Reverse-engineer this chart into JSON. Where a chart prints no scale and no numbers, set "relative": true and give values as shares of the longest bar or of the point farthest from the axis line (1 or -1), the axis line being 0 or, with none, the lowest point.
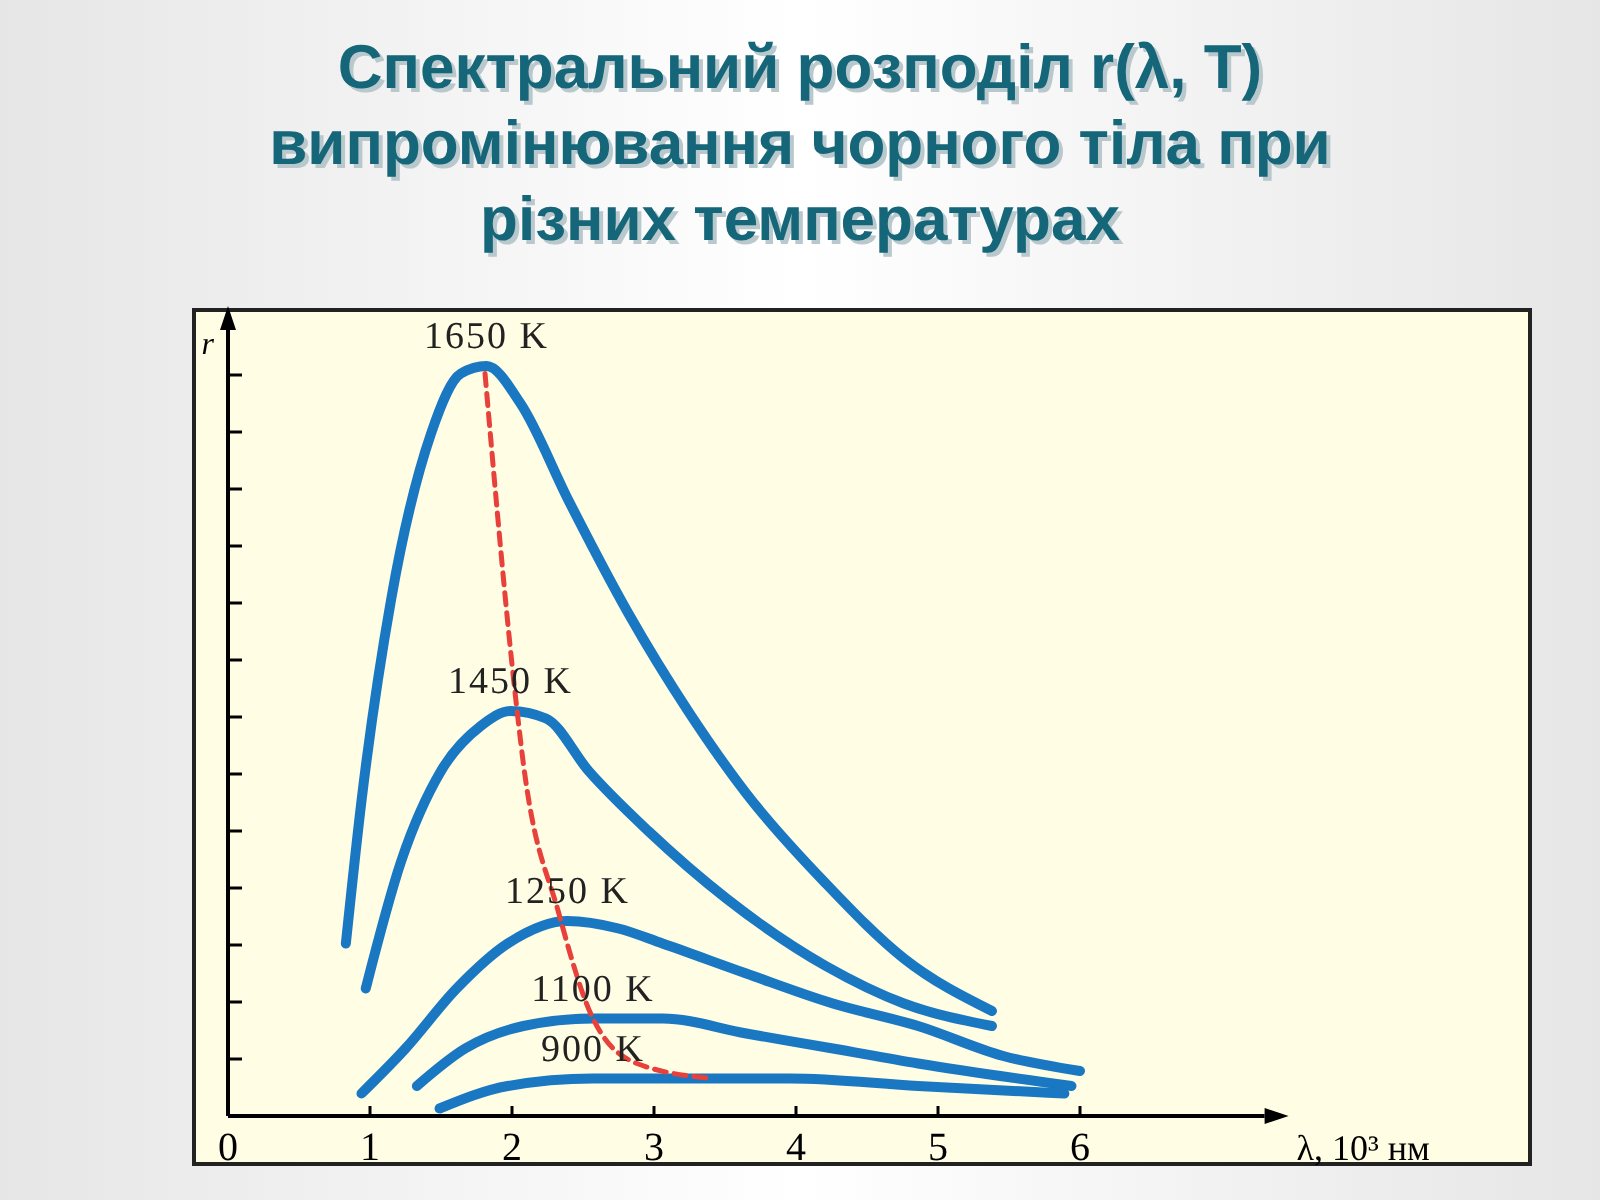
{
  "chart_data": {
    "type": "line",
    "title": "Спектральний розподіл r(λ, T) випромінювання чорного тіла при різних температурах",
    "xlabel": "λ, 10³ нм",
    "ylabel": "r",
    "relative": true,
    "tick_labels": "x",
    "xlim": [
      0,
      7.3
    ],
    "xticks": [
      0,
      1,
      2,
      3,
      4,
      5,
      6
    ],
    "legend": false,
    "line_style": "solid",
    "series": [
      {
        "name": "1650 K",
        "color": "#1a78c2",
        "x": [
          0.83,
          0.94,
          1.15,
          1.43,
          1.64,
          1.82,
          2.06,
          2.4,
          2.82,
          3.24,
          3.65,
          4.21,
          4.76,
          5.38
        ],
        "values": [
          0.23,
          0.42,
          0.69,
          0.91,
          0.99,
          1.0,
          0.95,
          0.82,
          0.67,
          0.54,
          0.43,
          0.31,
          0.21,
          0.14
        ]
      },
      {
        "name": "1450 K",
        "color": "#1a78c2",
        "x": [
          0.97,
          1.22,
          1.5,
          1.78,
          1.99,
          2.24,
          2.54,
          2.96,
          3.51,
          4.21,
          4.76,
          5.38
        ],
        "values": [
          0.17,
          0.34,
          0.46,
          0.52,
          0.54,
          0.53,
          0.46,
          0.38,
          0.29,
          0.2,
          0.15,
          0.12
        ]
      },
      {
        "name": "1250 K",
        "color": "#1a78c2",
        "x": [
          0.94,
          1.25,
          1.61,
          1.97,
          2.39,
          2.75,
          3.06,
          3.65,
          4.26,
          4.86,
          5.46,
          6.0
        ],
        "values": [
          0.03,
          0.09,
          0.17,
          0.23,
          0.26,
          0.25,
          0.23,
          0.19,
          0.15,
          0.12,
          0.08,
          0.06
        ]
      },
      {
        "name": "1100 K",
        "color": "#1a78c2",
        "x": [
          1.33,
          1.67,
          2.08,
          2.57,
          3.06,
          3.65,
          4.26,
          4.86,
          5.94
        ],
        "values": [
          0.04,
          0.09,
          0.12,
          0.13,
          0.13,
          0.11,
          0.09,
          0.07,
          0.04
        ]
      },
      {
        "name": "900 K",
        "color": "#1a78c2",
        "x": [
          1.49,
          1.97,
          2.57,
          3.17,
          3.96,
          4.86,
          5.89
        ],
        "values": [
          0.01,
          0.04,
          0.05,
          0.05,
          0.05,
          0.04,
          0.03
        ]
      },
      {
        "type": "line",
        "color": "#e8403a",
        "line_style": "dashed",
        "x": [
          1.81,
          2.03,
          2.08,
          2.33,
          2.57,
          2.88,
          3.42
        ],
        "values": [
          0.99,
          0.55,
          0.47,
          0.27,
          0.13,
          0.07,
          0.05
        ]
      }
    ]
  }
}
